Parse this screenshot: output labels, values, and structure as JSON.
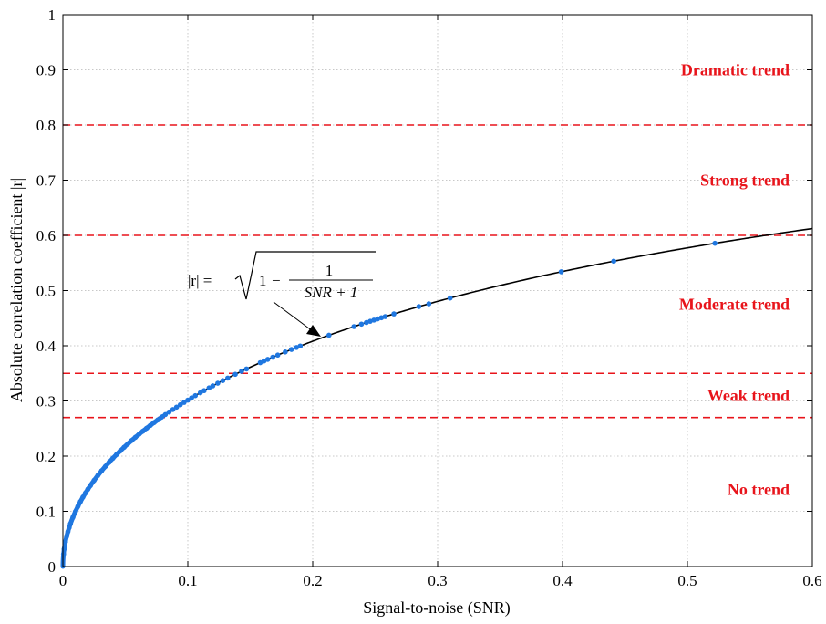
{
  "chart_data": {
    "type": "line",
    "xlabel": "Signal-to-noise (SNR)",
    "ylabel": "Absolute correlation coefficient |r|",
    "xlim": [
      0,
      0.6
    ],
    "ylim": [
      0,
      1
    ],
    "x_ticks": [
      0,
      0.1,
      0.2,
      0.3,
      0.4,
      0.5,
      0.6
    ],
    "x_tick_labels": [
      "0",
      "0.1",
      "0.2",
      "0.3",
      "0.4",
      "0.5",
      "0.6"
    ],
    "y_ticks": [
      0,
      0.1,
      0.2,
      0.3,
      0.4,
      0.5,
      0.6,
      0.7,
      0.8,
      0.9,
      1
    ],
    "y_tick_labels": [
      "0",
      "0.1",
      "0.2",
      "0.3",
      "0.4",
      "0.5",
      "0.6",
      "0.7",
      "0.8",
      "0.9",
      "1"
    ],
    "grid": true,
    "curve": {
      "formula_text": "|r| = √(1 − 1/(SNR + 1))",
      "color": "#000000"
    },
    "scatter_color": "#1f77e0",
    "scatter_x": [
      0.0005,
      0.001,
      0.002,
      0.003,
      0.004,
      0.005,
      0.006,
      0.008,
      0.01,
      0.012,
      0.014,
      0.016,
      0.018,
      0.02,
      0.022,
      0.025,
      0.028,
      0.031,
      0.034,
      0.037,
      0.04,
      0.043,
      0.046,
      0.049,
      0.052,
      0.055,
      0.058,
      0.061,
      0.064,
      0.067,
      0.07,
      0.073,
      0.076,
      0.079,
      0.082,
      0.085,
      0.088,
      0.091,
      0.094,
      0.097,
      0.1,
      0.103,
      0.106,
      0.11,
      0.113,
      0.117,
      0.12,
      0.124,
      0.128,
      0.132,
      0.138,
      0.143,
      0.147,
      0.158,
      0.161,
      0.164,
      0.168,
      0.172,
      0.178,
      0.183,
      0.187,
      0.19,
      0.213,
      0.233,
      0.239,
      0.243,
      0.246,
      0.249,
      0.252,
      0.255,
      0.258,
      0.265,
      0.285,
      0.293,
      0.31,
      0.399,
      0.441,
      0.522
    ],
    "reference_lines": [
      {
        "y": 0.8,
        "color": "#e8141b"
      },
      {
        "y": 0.6,
        "color": "#e8141b"
      },
      {
        "y": 0.35,
        "color": "#e8141b"
      },
      {
        "y": 0.27,
        "color": "#e8141b"
      }
    ],
    "annotations": [
      {
        "text": "Dramatic trend",
        "y": 0.9,
        "color": "#e8141b"
      },
      {
        "text": "Strong trend",
        "y": 0.7,
        "color": "#e8141b"
      },
      {
        "text": "Moderate trend",
        "y": 0.475,
        "color": "#e8141b"
      },
      {
        "text": "Weak trend",
        "y": 0.31,
        "color": "#e8141b"
      },
      {
        "text": "No trend",
        "y": 0.14,
        "color": "#e8141b"
      }
    ],
    "formula_parts": {
      "lhs": "|r| = ",
      "one": "1",
      "minus": "−",
      "numerator": "1",
      "denominator": "SNR + 1"
    }
  }
}
